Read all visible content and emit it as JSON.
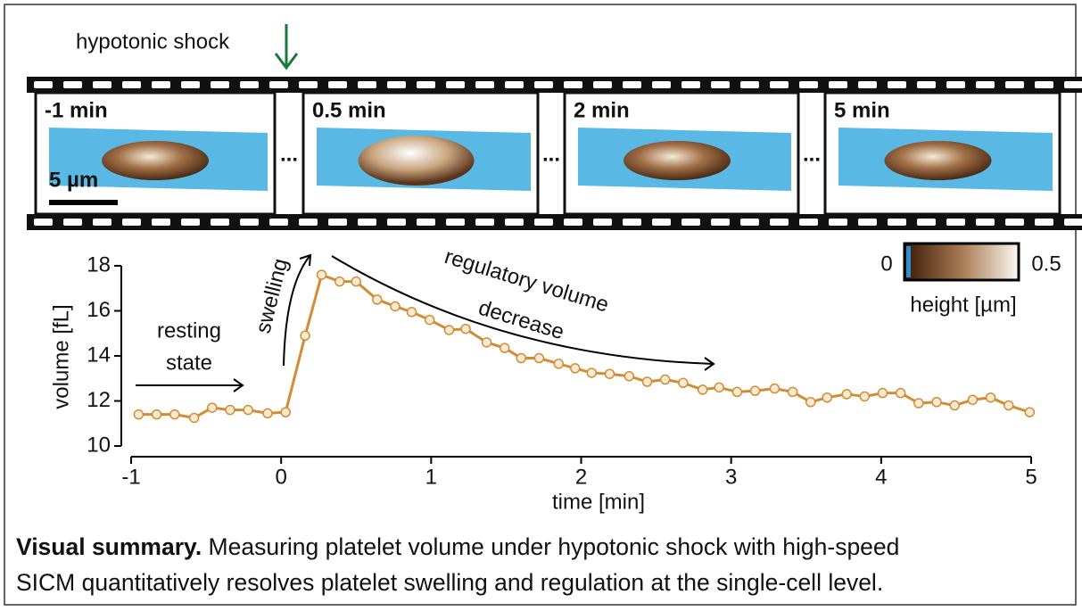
{
  "header": {
    "label": "hypotonic shock"
  },
  "filmstrip": {
    "frames": [
      "-1 min",
      "0.5 min",
      "2 min",
      "5 min"
    ],
    "separator": "...",
    "scale_bar": "5 µm"
  },
  "colorbar": {
    "ticks": [
      0,
      0.5
    ],
    "label": "height [µm]"
  },
  "chart_data": {
    "type": "line",
    "x_label": "time [min]",
    "y_label": "volume [fL]",
    "color": "#cf8d36",
    "x": [
      -0.95,
      -0.83,
      -0.71,
      -0.58,
      -0.46,
      -0.34,
      -0.22,
      -0.09,
      0.03,
      0.16,
      0.27,
      0.39,
      0.5,
      0.64,
      0.76,
      0.87,
      0.99,
      1.12,
      1.23,
      1.37,
      1.49,
      1.6,
      1.72,
      1.85,
      1.96,
      2.07,
      2.19,
      2.32,
      2.44,
      2.56,
      2.68,
      2.81,
      2.92,
      3.04,
      3.16,
      3.29,
      3.41,
      3.53,
      3.64,
      3.77,
      3.89,
      4.01,
      4.13,
      4.25,
      4.37,
      4.49,
      4.61,
      4.73,
      4.85,
      4.99
    ],
    "values": [
      11.4,
      11.4,
      11.4,
      11.25,
      11.7,
      11.6,
      11.6,
      11.45,
      11.5,
      14.9,
      17.6,
      17.3,
      17.3,
      16.5,
      16.2,
      15.95,
      15.6,
      15.15,
      15.2,
      14.6,
      14.35,
      13.9,
      13.9,
      13.65,
      13.45,
      13.25,
      13.2,
      13.1,
      12.85,
      12.95,
      12.8,
      12.5,
      12.6,
      12.4,
      12.45,
      12.55,
      12.4,
      11.95,
      12.15,
      12.3,
      12.2,
      12.35,
      12.35,
      11.9,
      11.95,
      11.8,
      12.05,
      12.15,
      11.8,
      11.5
    ],
    "xlim": [
      -1,
      5
    ],
    "ylim": [
      10,
      18
    ],
    "xticks": [
      -1,
      0,
      1,
      2,
      3,
      4,
      5
    ],
    "yticks": [
      10,
      12,
      14,
      16,
      18
    ],
    "annotations": [
      {
        "lines": [
          "resting",
          "state"
        ]
      },
      {
        "lines": [
          "swelling"
        ]
      },
      {
        "lines": [
          "regulatory volume",
          "decrease"
        ]
      }
    ]
  },
  "caption": {
    "title": "Visual summary.",
    "lines": [
      " Measuring platelet volume under hypotonic shock with high-speed",
      "SICM quantitatively resolves platelet swelling and regulation at the single-cell level."
    ]
  }
}
